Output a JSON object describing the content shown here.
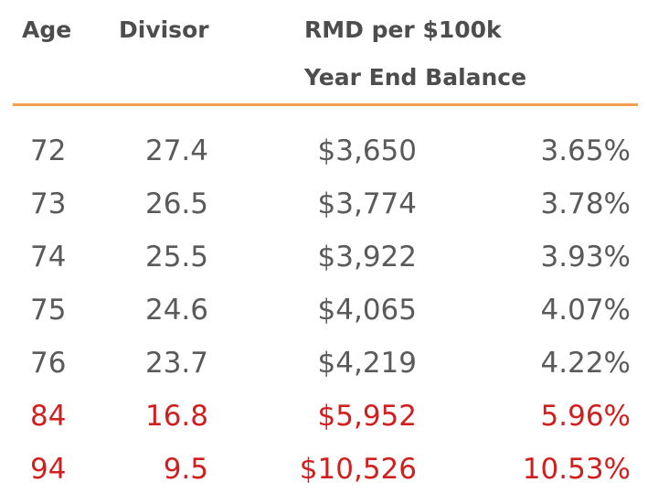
{
  "headers": {
    "age": "Age",
    "divisor": "Divisor",
    "rmd_line1": "RMD per $100k",
    "rmd_line2": "Year End Balance"
  },
  "colors": {
    "text": "#5a5a5a",
    "header": "#4d4d4d",
    "rule": "#f0a050",
    "highlight": "#d01f1f"
  },
  "rows": [
    {
      "age": "72",
      "divisor": "27.4",
      "rmd": "$3,650",
      "pct": "3.65%",
      "highlight": false
    },
    {
      "age": "73",
      "divisor": "26.5",
      "rmd": "$3,774",
      "pct": "3.78%",
      "highlight": false
    },
    {
      "age": "74",
      "divisor": "25.5",
      "rmd": "$3,922",
      "pct": "3.93%",
      "highlight": false
    },
    {
      "age": "75",
      "divisor": "24.6",
      "rmd": "$4,065",
      "pct": "4.07%",
      "highlight": false
    },
    {
      "age": "76",
      "divisor": "23.7",
      "rmd": "$4,219",
      "pct": "4.22%",
      "highlight": false
    },
    {
      "age": "84",
      "divisor": "16.8",
      "rmd": "$5,952",
      "pct": "5.96%",
      "highlight": true
    },
    {
      "age": "94",
      "divisor": "9.5",
      "rmd": "$10,526",
      "pct": "10.53%",
      "highlight": true
    }
  ]
}
